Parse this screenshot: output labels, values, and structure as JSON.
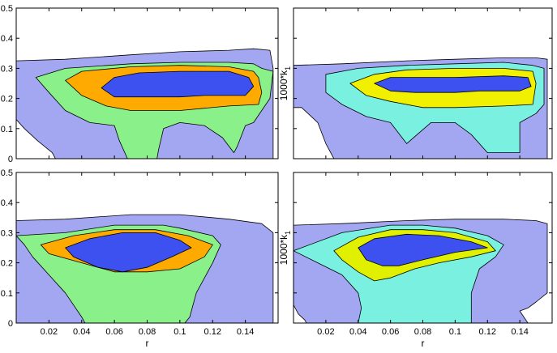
{
  "chart_data": [
    {
      "type": "contour",
      "panel": "top-left",
      "xlabel": "",
      "ylabel": "",
      "xlim": [
        0.0,
        0.16
      ],
      "ylim": [
        0,
        0.5
      ],
      "x_ticks": [],
      "y_ticks": [
        "0",
        "0.1",
        "0.2",
        "0.3",
        "0.4",
        "0.5"
      ],
      "grid": false,
      "levels": [
        {
          "color": "#a3a6f0",
          "points": [
            [
              0.0,
              0.325
            ],
            [
              0.03,
              0.33
            ],
            [
              0.07,
              0.345
            ],
            [
              0.1,
              0.355
            ],
            [
              0.13,
              0.36
            ],
            [
              0.145,
              0.365
            ],
            [
              0.155,
              0.36
            ],
            [
              0.157,
              0.3
            ],
            [
              0.157,
              0.0
            ],
            [
              0.0,
              0.0
            ],
            [
              0.0,
              0.13
            ],
            [
              0.005,
              0.1
            ],
            [
              0.013,
              0.06
            ],
            [
              0.022,
              0.02
            ],
            [
              0.024,
              0.0
            ],
            [
              0.0,
              0.0
            ]
          ]
        },
        {
          "color": "#8af08a",
          "points": [
            [
              0.012,
              0.27
            ],
            [
              0.03,
              0.3
            ],
            [
              0.07,
              0.315
            ],
            [
              0.1,
              0.32
            ],
            [
              0.13,
              0.32
            ],
            [
              0.145,
              0.315
            ],
            [
              0.15,
              0.3
            ],
            [
              0.157,
              0.29
            ],
            [
              0.155,
              0.2
            ],
            [
              0.145,
              0.12
            ],
            [
              0.14,
              0.11
            ],
            [
              0.135,
              0.04
            ],
            [
              0.133,
              0.02
            ],
            [
              0.126,
              0.07
            ],
            [
              0.115,
              0.11
            ],
            [
              0.1,
              0.12
            ],
            [
              0.09,
              0.1
            ],
            [
              0.087,
              0.03
            ],
            [
              0.086,
              0.0
            ],
            [
              0.068,
              0.0
            ],
            [
              0.063,
              0.06
            ],
            [
              0.06,
              0.11
            ],
            [
              0.045,
              0.12
            ],
            [
              0.03,
              0.16
            ],
            [
              0.02,
              0.22
            ]
          ]
        },
        {
          "color": "#ffaa00",
          "points": [
            [
              0.03,
              0.26
            ],
            [
              0.04,
              0.29
            ],
            [
              0.07,
              0.305
            ],
            [
              0.1,
              0.31
            ],
            [
              0.13,
              0.305
            ],
            [
              0.145,
              0.29
            ],
            [
              0.148,
              0.27
            ],
            [
              0.15,
              0.22
            ],
            [
              0.148,
              0.18
            ],
            [
              0.13,
              0.175
            ],
            [
              0.1,
              0.16
            ],
            [
              0.07,
              0.16
            ],
            [
              0.055,
              0.175
            ],
            [
              0.04,
              0.21
            ]
          ]
        },
        {
          "color": "#3d50f0",
          "points": [
            [
              0.052,
              0.235
            ],
            [
              0.06,
              0.27
            ],
            [
              0.075,
              0.285
            ],
            [
              0.1,
              0.29
            ],
            [
              0.13,
              0.29
            ],
            [
              0.142,
              0.27
            ],
            [
              0.145,
              0.24
            ],
            [
              0.14,
              0.21
            ],
            [
              0.115,
              0.21
            ],
            [
              0.1,
              0.205
            ],
            [
              0.075,
              0.205
            ],
            [
              0.06,
              0.205
            ]
          ]
        }
      ]
    },
    {
      "type": "contour",
      "panel": "top-right",
      "xlabel": "",
      "ylabel": "1000*k_1",
      "xlim": [
        0.0,
        0.16
      ],
      "ylim": [
        0,
        0.5
      ],
      "x_ticks": [],
      "y_ticks": [],
      "grid": false,
      "levels": [
        {
          "color": "#a3a6f0",
          "points": [
            [
              0.0,
              0.31
            ],
            [
              0.03,
              0.315
            ],
            [
              0.07,
              0.325
            ],
            [
              0.1,
              0.33
            ],
            [
              0.13,
              0.335
            ],
            [
              0.15,
              0.335
            ],
            [
              0.157,
              0.33
            ],
            [
              0.157,
              0.0
            ],
            [
              0.025,
              0.0
            ],
            [
              0.02,
              0.05
            ],
            [
              0.015,
              0.12
            ],
            [
              0.005,
              0.17
            ],
            [
              0.0,
              0.17
            ]
          ]
        },
        {
          "color": "#7af0e0",
          "points": [
            [
              0.02,
              0.28
            ],
            [
              0.04,
              0.3
            ],
            [
              0.07,
              0.31
            ],
            [
              0.1,
              0.315
            ],
            [
              0.13,
              0.32
            ],
            [
              0.148,
              0.31
            ],
            [
              0.155,
              0.3
            ],
            [
              0.155,
              0.18
            ],
            [
              0.15,
              0.15
            ],
            [
              0.14,
              0.12
            ],
            [
              0.14,
              0.02
            ],
            [
              0.12,
              0.02
            ],
            [
              0.11,
              0.08
            ],
            [
              0.1,
              0.12
            ],
            [
              0.085,
              0.12
            ],
            [
              0.07,
              0.05
            ],
            [
              0.06,
              0.12
            ],
            [
              0.045,
              0.14
            ],
            [
              0.03,
              0.18
            ],
            [
              0.02,
              0.22
            ]
          ]
        },
        {
          "color": "#f0f000",
          "points": [
            [
              0.035,
              0.25
            ],
            [
              0.05,
              0.28
            ],
            [
              0.07,
              0.295
            ],
            [
              0.1,
              0.3
            ],
            [
              0.13,
              0.3
            ],
            [
              0.148,
              0.29
            ],
            [
              0.15,
              0.25
            ],
            [
              0.148,
              0.18
            ],
            [
              0.13,
              0.175
            ],
            [
              0.1,
              0.17
            ],
            [
              0.08,
              0.17
            ],
            [
              0.06,
              0.19
            ],
            [
              0.045,
              0.21
            ]
          ]
        },
        {
          "color": "#3d50f0",
          "points": [
            [
              0.05,
              0.25
            ],
            [
              0.06,
              0.27
            ],
            [
              0.075,
              0.27
            ],
            [
              0.1,
              0.27
            ],
            [
              0.13,
              0.275
            ],
            [
              0.145,
              0.27
            ],
            [
              0.147,
              0.24
            ],
            [
              0.14,
              0.225
            ],
            [
              0.115,
              0.225
            ],
            [
              0.1,
              0.22
            ],
            [
              0.075,
              0.22
            ],
            [
              0.06,
              0.225
            ]
          ]
        }
      ]
    },
    {
      "type": "contour",
      "panel": "bottom-left",
      "xlabel": "r",
      "ylabel": "",
      "xlim": [
        0.0,
        0.16
      ],
      "ylim": [
        0,
        0.5
      ],
      "x_ticks": [
        "0.02",
        "0.04",
        "0.06",
        "0.08",
        "0.1",
        "0.12",
        "0.14"
      ],
      "y_ticks": [
        "0",
        "0.1",
        "0.2",
        "0.3",
        "0.4",
        "0.5"
      ],
      "grid": false,
      "levels": [
        {
          "color": "#a3a6f0",
          "points": [
            [
              0.0,
              0.34
            ],
            [
              0.03,
              0.345
            ],
            [
              0.07,
              0.36
            ],
            [
              0.1,
              0.36
            ],
            [
              0.13,
              0.345
            ],
            [
              0.15,
              0.33
            ],
            [
              0.157,
              0.3
            ],
            [
              0.157,
              0.0
            ],
            [
              0.0,
              0.0
            ]
          ]
        },
        {
          "color": "#8af08a",
          "points": [
            [
              0.0,
              0.29
            ],
            [
              0.03,
              0.3
            ],
            [
              0.06,
              0.325
            ],
            [
              0.09,
              0.325
            ],
            [
              0.1,
              0.315
            ],
            [
              0.12,
              0.29
            ],
            [
              0.125,
              0.26
            ],
            [
              0.12,
              0.2
            ],
            [
              0.11,
              0.1
            ],
            [
              0.106,
              0.02
            ],
            [
              0.103,
              0.0
            ],
            [
              0.042,
              0.0
            ],
            [
              0.04,
              0.02
            ],
            [
              0.03,
              0.1
            ],
            [
              0.02,
              0.16
            ],
            [
              0.01,
              0.22
            ],
            [
              0.005,
              0.26
            ]
          ]
        },
        {
          "color": "#ffaa00",
          "points": [
            [
              0.015,
              0.26
            ],
            [
              0.035,
              0.29
            ],
            [
              0.06,
              0.31
            ],
            [
              0.085,
              0.31
            ],
            [
              0.105,
              0.29
            ],
            [
              0.12,
              0.26
            ],
            [
              0.115,
              0.22
            ],
            [
              0.1,
              0.18
            ],
            [
              0.08,
              0.17
            ],
            [
              0.06,
              0.17
            ],
            [
              0.04,
              0.2
            ],
            [
              0.02,
              0.23
            ]
          ]
        },
        {
          "color": "#3d50f0",
          "points": [
            [
              0.03,
              0.25
            ],
            [
              0.045,
              0.28
            ],
            [
              0.065,
              0.3
            ],
            [
              0.085,
              0.3
            ],
            [
              0.1,
              0.275
            ],
            [
              0.107,
              0.25
            ],
            [
              0.095,
              0.22
            ],
            [
              0.08,
              0.185
            ],
            [
              0.065,
              0.17
            ],
            [
              0.05,
              0.185
            ],
            [
              0.035,
              0.22
            ]
          ]
        }
      ]
    },
    {
      "type": "contour",
      "panel": "bottom-right",
      "xlabel": "r",
      "ylabel": "1000*k_1",
      "xlim": [
        0.0,
        0.16
      ],
      "ylim": [
        0,
        0.5
      ],
      "x_ticks": [
        "0.02",
        "0.04",
        "0.06",
        "0.08",
        "0.1",
        "0.12",
        "0.14"
      ],
      "y_ticks": [],
      "grid": false,
      "levels": [
        {
          "color": "#a3a6f0",
          "points": [
            [
              0.0,
              0.325
            ],
            [
              0.03,
              0.33
            ],
            [
              0.07,
              0.34
            ],
            [
              0.1,
              0.345
            ],
            [
              0.13,
              0.345
            ],
            [
              0.15,
              0.34
            ],
            [
              0.157,
              0.33
            ],
            [
              0.157,
              0.1
            ],
            [
              0.15,
              0.07
            ],
            [
              0.145,
              0.05
            ],
            [
              0.14,
              0.04
            ],
            [
              0.145,
              0.0
            ],
            [
              0.0,
              0.0
            ],
            [
              0.0,
              0.06
            ],
            [
              0.003,
              0.03
            ],
            [
              0.007,
              0.01
            ],
            [
              0.008,
              0.0
            ],
            [
              0.0,
              0.0
            ]
          ]
        },
        {
          "color": "#7af0e0",
          "points": [
            [
              0.0,
              0.24
            ],
            [
              0.03,
              0.3
            ],
            [
              0.06,
              0.325
            ],
            [
              0.08,
              0.325
            ],
            [
              0.1,
              0.315
            ],
            [
              0.12,
              0.29
            ],
            [
              0.13,
              0.26
            ],
            [
              0.125,
              0.22
            ],
            [
              0.115,
              0.18
            ],
            [
              0.11,
              0.1
            ],
            [
              0.11,
              0.0
            ],
            [
              0.04,
              0.0
            ],
            [
              0.042,
              0.05
            ],
            [
              0.04,
              0.1
            ],
            [
              0.03,
              0.16
            ],
            [
              0.015,
              0.2
            ]
          ]
        },
        {
          "color": "#e0f000",
          "points": [
            [
              0.025,
              0.24
            ],
            [
              0.04,
              0.285
            ],
            [
              0.06,
              0.31
            ],
            [
              0.08,
              0.31
            ],
            [
              0.1,
              0.3
            ],
            [
              0.12,
              0.27
            ],
            [
              0.125,
              0.24
            ],
            [
              0.11,
              0.22
            ],
            [
              0.09,
              0.2
            ],
            [
              0.075,
              0.18
            ],
            [
              0.06,
              0.15
            ],
            [
              0.05,
              0.14
            ],
            [
              0.04,
              0.17
            ],
            [
              0.03,
              0.21
            ]
          ]
        },
        {
          "color": "#3d50f0",
          "points": [
            [
              0.04,
              0.25
            ],
            [
              0.05,
              0.28
            ],
            [
              0.07,
              0.295
            ],
            [
              0.09,
              0.29
            ],
            [
              0.11,
              0.27
            ],
            [
              0.12,
              0.25
            ],
            [
              0.1,
              0.235
            ],
            [
              0.08,
              0.21
            ],
            [
              0.065,
              0.19
            ],
            [
              0.055,
              0.19
            ],
            [
              0.045,
              0.21
            ]
          ]
        }
      ]
    }
  ]
}
